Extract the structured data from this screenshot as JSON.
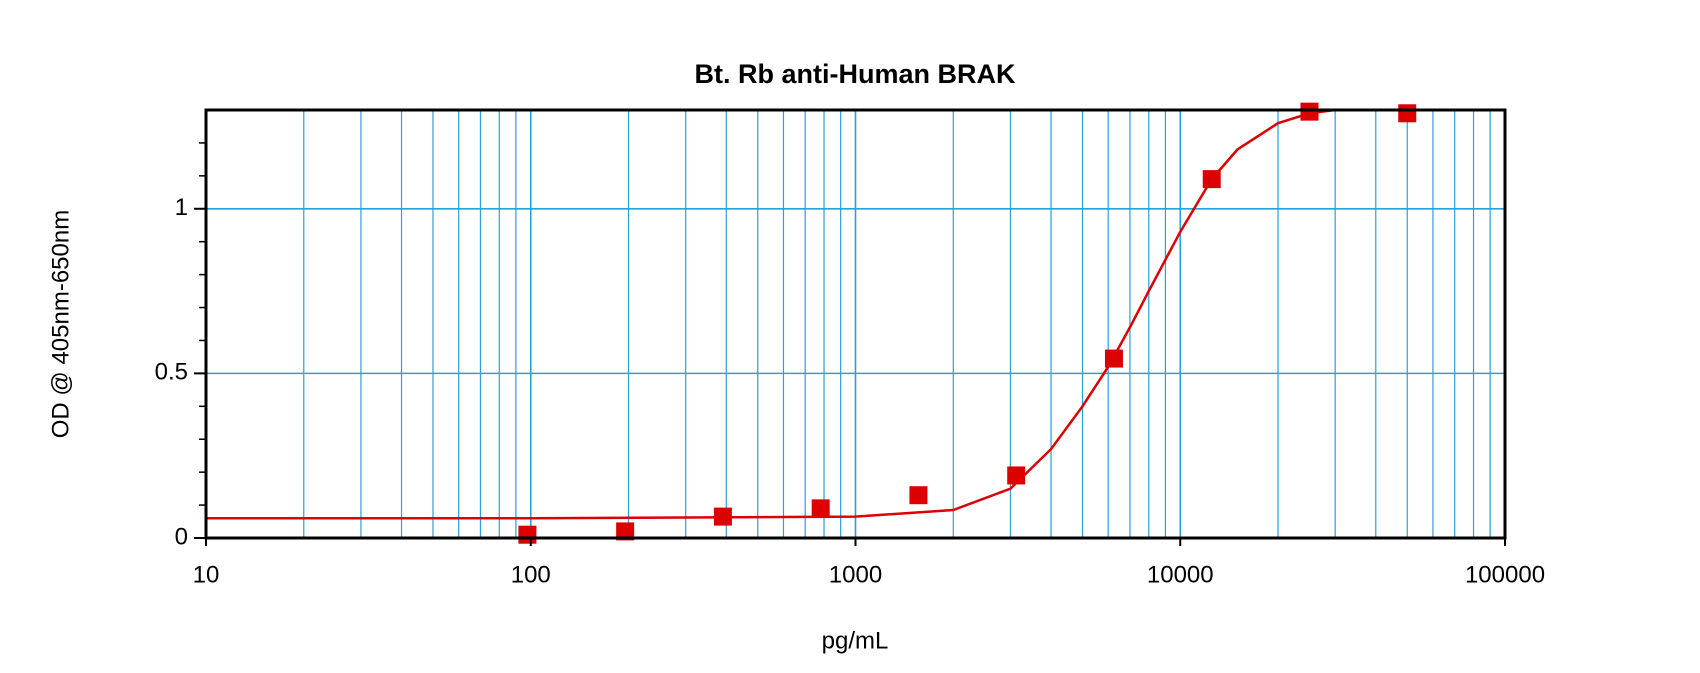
{
  "chart_data": {
    "type": "scatter",
    "title": "Bt. Rb anti-Human BRAK",
    "x_label": "pg/mL",
    "y_label": "OD @ 405nm-650nm",
    "xlog": true,
    "grid": true,
    "grid_color": "#2aa0d8",
    "xlim": [
      10,
      100000
    ],
    "ylim": [
      0,
      1.3
    ],
    "xticks": [
      10,
      100,
      1000,
      10000,
      100000
    ],
    "x_minor_ticks": [
      20,
      30,
      40,
      50,
      60,
      70,
      80,
      90,
      200,
      300,
      400,
      500,
      600,
      700,
      800,
      900,
      2000,
      3000,
      4000,
      5000,
      6000,
      7000,
      8000,
      9000,
      20000,
      30000,
      40000,
      50000,
      60000,
      70000,
      80000,
      90000
    ],
    "yticks": [
      0,
      0.5,
      1
    ],
    "y_minor_ticks": [
      0.1,
      0.2,
      0.3,
      0.4,
      0.6,
      0.7,
      0.8,
      0.9,
      1.1,
      1.2
    ],
    "points": {
      "color": "#dd0000",
      "x": [
        97.66,
        195.3,
        390.6,
        781.25,
        1562.5,
        3125,
        6250,
        12500,
        25000,
        50000
      ],
      "values": [
        0.01,
        0.02,
        0.065,
        0.09,
        0.13,
        0.19,
        0.545,
        1.09,
        1.295,
        1.29
      ]
    },
    "curve": {
      "color": "#dd0000",
      "x": [
        10,
        100,
        1000,
        2000,
        3000,
        4000,
        5000,
        6000,
        7000,
        8000,
        10000,
        12500,
        15000,
        20000,
        25000,
        30000
      ],
      "values": [
        0.06,
        0.06,
        0.065,
        0.085,
        0.15,
        0.27,
        0.4,
        0.52,
        0.64,
        0.75,
        0.93,
        1.09,
        1.18,
        1.26,
        1.29,
        1.3
      ]
    }
  }
}
